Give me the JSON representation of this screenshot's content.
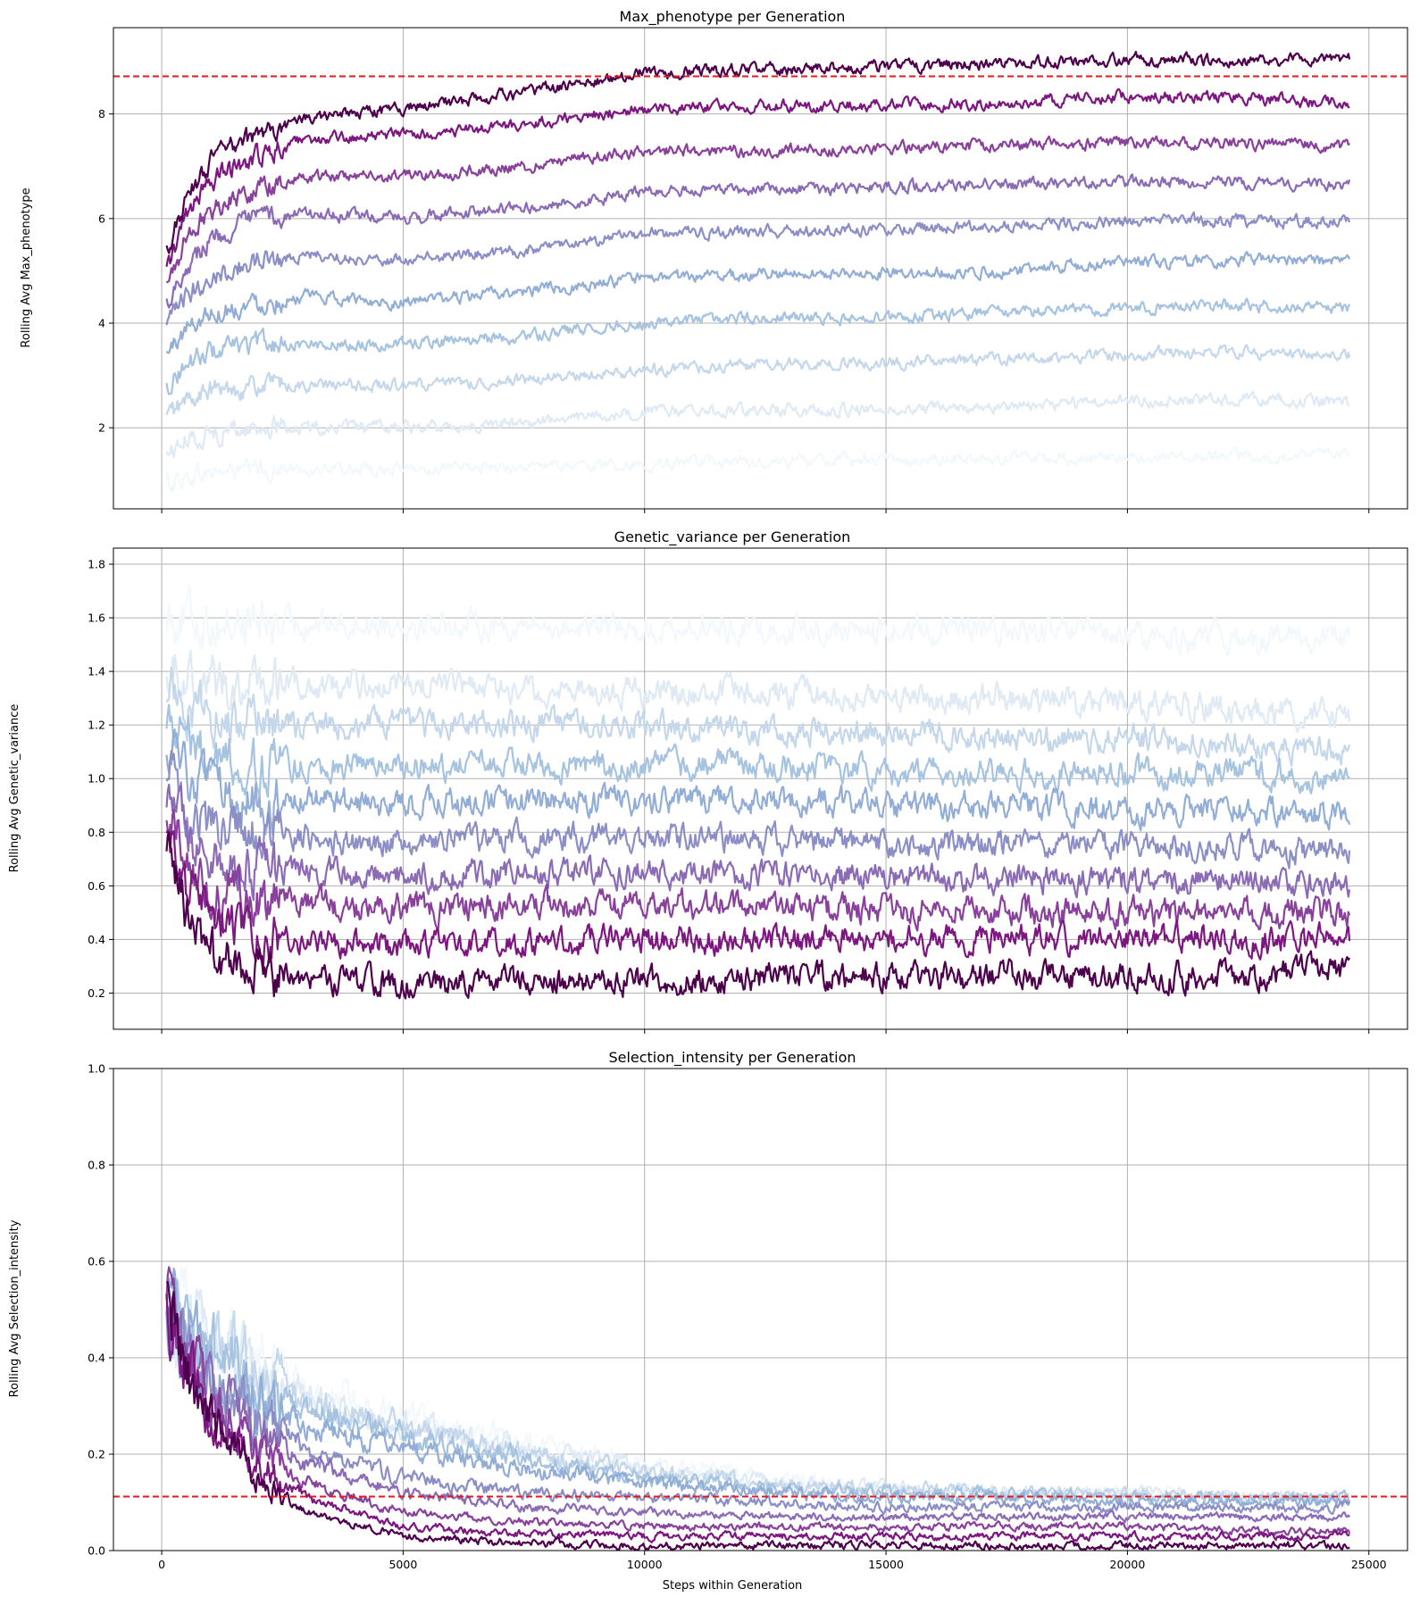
{
  "chart_data": [
    {
      "type": "line",
      "title": "Max_phenotype per Generation",
      "ylabel": "Rolling Avg Max_phenotype",
      "xlabel": "",
      "xlim": [
        -1000,
        25800
      ],
      "ylim": [
        0.45,
        9.65
      ],
      "xticks": [
        0,
        5000,
        10000,
        15000,
        20000,
        25000
      ],
      "xtick_labels": [
        "",
        "",
        "",
        "",
        "",
        ""
      ],
      "yticks": [
        2,
        4,
        6,
        8
      ],
      "ytick_labels": [
        "2",
        "4",
        "6",
        "8"
      ],
      "grid": true,
      "legend": "none",
      "hline": {
        "y": 8.72,
        "color": "#e31a1c",
        "style": "dashed"
      },
      "x": [
        100,
        500,
        1000,
        2000,
        3000,
        5000,
        7500,
        10000,
        12500,
        15000,
        17500,
        20000,
        22500,
        24600
      ],
      "noise": 0.09,
      "series": [
        {
          "values": [
            0.95,
            1.05,
            1.15,
            1.2,
            1.2,
            1.2,
            1.25,
            1.3,
            1.35,
            1.4,
            1.4,
            1.45,
            1.45,
            1.5
          ]
        },
        {
          "values": [
            1.5,
            1.75,
            1.9,
            2.0,
            2.0,
            2.0,
            2.1,
            2.3,
            2.35,
            2.35,
            2.4,
            2.5,
            2.55,
            2.5
          ]
        },
        {
          "values": [
            2.2,
            2.5,
            2.7,
            2.8,
            2.8,
            2.8,
            2.9,
            3.1,
            3.2,
            3.25,
            3.3,
            3.4,
            3.45,
            3.4
          ]
        },
        {
          "values": [
            2.8,
            3.2,
            3.45,
            3.6,
            3.6,
            3.6,
            3.75,
            4.0,
            4.1,
            4.1,
            4.2,
            4.3,
            4.35,
            4.3
          ]
        },
        {
          "values": [
            3.4,
            3.9,
            4.2,
            4.4,
            4.5,
            4.4,
            4.6,
            4.85,
            4.95,
            4.95,
            5.0,
            5.15,
            5.2,
            5.15
          ]
        },
        {
          "values": [
            3.9,
            4.5,
            4.9,
            5.2,
            5.3,
            5.2,
            5.4,
            5.7,
            5.75,
            5.8,
            5.85,
            5.95,
            5.95,
            5.95
          ]
        },
        {
          "values": [
            4.4,
            5.1,
            5.6,
            6.0,
            6.1,
            6.0,
            6.2,
            6.5,
            6.55,
            6.6,
            6.65,
            6.7,
            6.7,
            6.65
          ]
        },
        {
          "values": [
            4.7,
            5.6,
            6.2,
            6.6,
            6.8,
            6.8,
            7.0,
            7.3,
            7.3,
            7.35,
            7.4,
            7.45,
            7.45,
            7.4
          ]
        },
        {
          "values": [
            5.0,
            6.0,
            6.7,
            7.2,
            7.5,
            7.6,
            7.8,
            8.1,
            8.15,
            8.15,
            8.2,
            8.35,
            8.3,
            8.2
          ]
        },
        {
          "values": [
            5.4,
            6.3,
            7.1,
            7.6,
            7.9,
            8.1,
            8.4,
            8.8,
            8.85,
            8.9,
            8.95,
            9.05,
            9.0,
            9.05
          ]
        }
      ]
    },
    {
      "type": "line",
      "title": "Genetic_variance per Generation",
      "ylabel": "Rolling Avg Genetic_variance",
      "xlabel": "",
      "xlim": [
        -1000,
        25800
      ],
      "ylim": [
        0.065,
        1.86
      ],
      "xticks": [
        0,
        5000,
        10000,
        15000,
        20000,
        25000
      ],
      "xtick_labels": [
        "",
        "",
        "",
        "",
        "",
        ""
      ],
      "yticks": [
        0.2,
        0.4,
        0.6,
        0.8,
        1.0,
        1.2,
        1.4,
        1.6,
        1.8
      ],
      "ytick_labels": [
        "0.2",
        "0.4",
        "0.6",
        "0.8",
        "1.0",
        "1.2",
        "1.4",
        "1.6",
        "1.8"
      ],
      "grid": true,
      "legend": "none",
      "x": [
        100,
        500,
        1000,
        2000,
        3000,
        5000,
        7500,
        10000,
        12500,
        15000,
        17500,
        20000,
        22500,
        24600
      ],
      "noise": 0.04,
      "series": [
        {
          "values": [
            1.62,
            1.6,
            1.58,
            1.58,
            1.58,
            1.58,
            1.57,
            1.56,
            1.56,
            1.55,
            1.55,
            1.53,
            1.52,
            1.52
          ]
        },
        {
          "values": [
            1.45,
            1.4,
            1.36,
            1.35,
            1.35,
            1.35,
            1.33,
            1.32,
            1.32,
            1.3,
            1.3,
            1.28,
            1.26,
            1.24
          ]
        },
        {
          "values": [
            1.35,
            1.28,
            1.22,
            1.2,
            1.2,
            1.2,
            1.2,
            1.2,
            1.18,
            1.17,
            1.15,
            1.15,
            1.13,
            1.1
          ]
        },
        {
          "values": [
            1.25,
            1.15,
            1.08,
            1.05,
            1.05,
            1.05,
            1.05,
            1.05,
            1.05,
            1.03,
            1.02,
            1.02,
            1.02,
            1.0
          ]
        },
        {
          "values": [
            1.15,
            1.02,
            0.95,
            0.92,
            0.92,
            0.9,
            0.92,
            0.92,
            0.92,
            0.9,
            0.9,
            0.88,
            0.88,
            0.87
          ]
        },
        {
          "values": [
            1.05,
            0.9,
            0.82,
            0.78,
            0.78,
            0.76,
            0.78,
            0.78,
            0.77,
            0.76,
            0.75,
            0.75,
            0.74,
            0.72
          ]
        },
        {
          "values": [
            0.95,
            0.8,
            0.7,
            0.66,
            0.65,
            0.64,
            0.65,
            0.65,
            0.64,
            0.63,
            0.63,
            0.62,
            0.62,
            0.6
          ]
        },
        {
          "values": [
            0.9,
            0.7,
            0.6,
            0.54,
            0.53,
            0.52,
            0.53,
            0.53,
            0.52,
            0.51,
            0.51,
            0.5,
            0.5,
            0.5
          ]
        },
        {
          "values": [
            0.85,
            0.6,
            0.48,
            0.42,
            0.4,
            0.38,
            0.39,
            0.4,
            0.4,
            0.4,
            0.4,
            0.4,
            0.4,
            0.4
          ]
        },
        {
          "values": [
            0.78,
            0.5,
            0.35,
            0.28,
            0.25,
            0.24,
            0.24,
            0.24,
            0.26,
            0.26,
            0.26,
            0.26,
            0.27,
            0.28
          ]
        }
      ]
    },
    {
      "type": "line",
      "title": "Selection_intensity per Generation",
      "ylabel": "Rolling Avg Selection_intensity",
      "xlabel": "Steps within Generation",
      "xlim": [
        -1000,
        25800
      ],
      "ylim": [
        0.0,
        1.0
      ],
      "xticks": [
        0,
        5000,
        10000,
        15000,
        20000,
        25000
      ],
      "xtick_labels": [
        "0",
        "5000",
        "10000",
        "15000",
        "20000",
        "25000"
      ],
      "yticks": [
        0.0,
        0.2,
        0.4,
        0.6,
        0.8,
        1.0
      ],
      "ytick_labels": [
        "0.0",
        "0.2",
        "0.4",
        "0.6",
        "0.8",
        "1.0"
      ],
      "grid": true,
      "legend": "none",
      "hline": {
        "y": 0.112,
        "color": "#e31a1c",
        "style": "dashed"
      },
      "x": [
        100,
        500,
        1000,
        2000,
        3000,
        5000,
        7500,
        10000,
        12500,
        15000,
        17500,
        20000,
        22500,
        24600
      ],
      "noise": 0.025,
      "series": [
        {
          "values": [
            0.5,
            0.48,
            0.44,
            0.38,
            0.33,
            0.28,
            0.22,
            0.18,
            0.15,
            0.13,
            0.12,
            0.12,
            0.11,
            0.11
          ]
        },
        {
          "values": [
            0.5,
            0.47,
            0.43,
            0.37,
            0.32,
            0.27,
            0.21,
            0.17,
            0.14,
            0.13,
            0.12,
            0.12,
            0.11,
            0.11
          ]
        },
        {
          "values": [
            0.5,
            0.46,
            0.42,
            0.36,
            0.31,
            0.26,
            0.2,
            0.16,
            0.14,
            0.13,
            0.12,
            0.12,
            0.11,
            0.11
          ]
        },
        {
          "values": [
            0.5,
            0.45,
            0.4,
            0.34,
            0.29,
            0.24,
            0.19,
            0.15,
            0.13,
            0.12,
            0.12,
            0.11,
            0.11,
            0.11
          ]
        },
        {
          "values": [
            0.5,
            0.44,
            0.38,
            0.31,
            0.26,
            0.21,
            0.17,
            0.14,
            0.12,
            0.11,
            0.11,
            0.1,
            0.1,
            0.1
          ]
        },
        {
          "values": [
            0.5,
            0.42,
            0.35,
            0.27,
            0.21,
            0.15,
            0.12,
            0.11,
            0.1,
            0.09,
            0.09,
            0.09,
            0.09,
            0.09
          ]
        },
        {
          "values": [
            0.51,
            0.41,
            0.33,
            0.24,
            0.18,
            0.12,
            0.09,
            0.08,
            0.07,
            0.07,
            0.07,
            0.07,
            0.07,
            0.07
          ]
        },
        {
          "values": [
            0.52,
            0.4,
            0.31,
            0.21,
            0.14,
            0.08,
            0.06,
            0.05,
            0.05,
            0.05,
            0.05,
            0.05,
            0.04,
            0.04
          ]
        },
        {
          "values": [
            0.53,
            0.39,
            0.29,
            0.18,
            0.11,
            0.05,
            0.035,
            0.03,
            0.03,
            0.03,
            0.03,
            0.03,
            0.03,
            0.03
          ]
        },
        {
          "values": [
            0.55,
            0.38,
            0.27,
            0.15,
            0.08,
            0.03,
            0.015,
            0.01,
            0.01,
            0.01,
            0.01,
            0.01,
            0.01,
            0.01
          ]
        }
      ]
    }
  ],
  "series_colors": [
    "#f2f8fb",
    "#dfeaf4",
    "#c5d7eb",
    "#a6c3e0",
    "#93aed6",
    "#8c8fc6",
    "#8b6bb5",
    "#89419c",
    "#7d1780",
    "#4d004b"
  ]
}
